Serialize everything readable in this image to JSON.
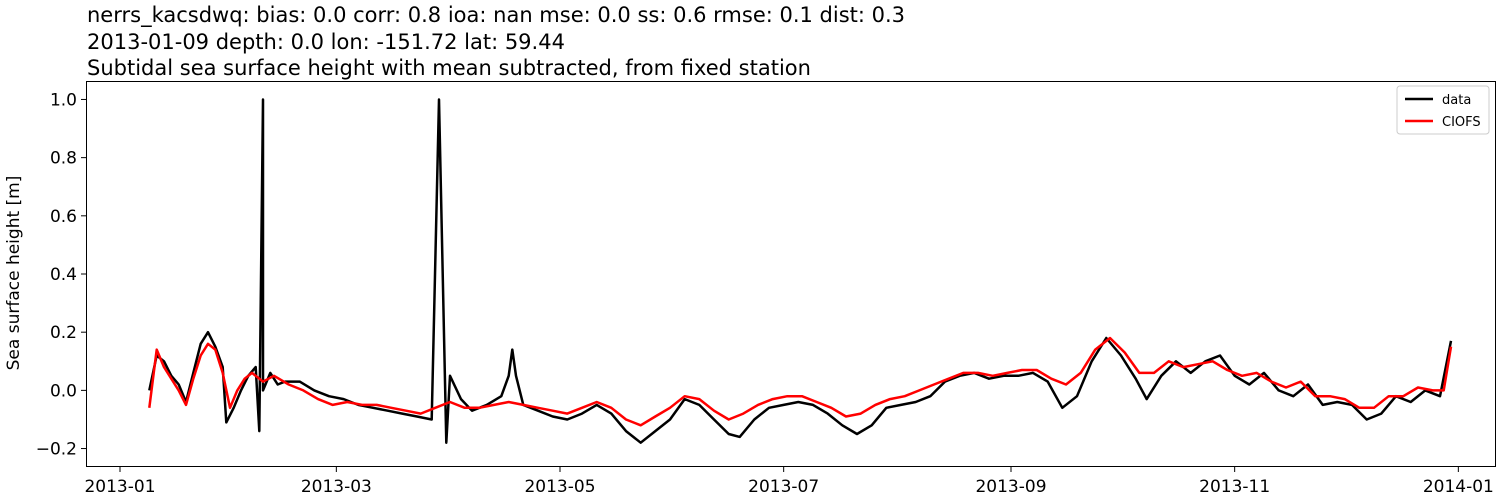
{
  "chart_data": {
    "type": "line",
    "title_lines": [
      "nerrs_kacsdwq: bias: 0.0  corr: 0.8  ioa: nan  mse: 0.0  ss: 0.6  rmse: 0.1  dist: 0.3",
      "2013-01-09 depth: 0.0 lon: -151.72 lat: 59.44",
      "Subtidal sea surface height with mean subtracted, from fixed station"
    ],
    "xlabel": "",
    "ylabel": "Sea surface height [m]",
    "xlim": [
      "2012-12-23",
      "2014-01-11"
    ],
    "ylim": [
      -0.26,
      1.06
    ],
    "x_ticks": [
      "2013-01",
      "2013-03",
      "2013-05",
      "2013-07",
      "2013-09",
      "2013-11",
      "2014-01"
    ],
    "y_ticks": [
      -0.2,
      0.0,
      0.2,
      0.4,
      0.6,
      0.8,
      1.0
    ],
    "y_tick_labels": [
      "−0.2",
      "0.0",
      "0.2",
      "0.4",
      "0.6",
      "0.8",
      "1.0"
    ],
    "grid": false,
    "legend_position": "top-right",
    "colors": {
      "data": "#000000",
      "CIOFS": "#ff0000"
    },
    "series": [
      {
        "name": "data",
        "points": [
          [
            "2013-01-09",
            0.0
          ],
          [
            "2013-01-11",
            0.12
          ],
          [
            "2013-01-13",
            0.1
          ],
          [
            "2013-01-15",
            0.05
          ],
          [
            "2013-01-17",
            0.02
          ],
          [
            "2013-01-19",
            -0.04
          ],
          [
            "2013-01-21",
            0.06
          ],
          [
            "2013-01-23",
            0.16
          ],
          [
            "2013-01-25",
            0.2
          ],
          [
            "2013-01-27",
            0.15
          ],
          [
            "2013-01-29",
            0.08
          ],
          [
            "2013-01-30",
            -0.11
          ],
          [
            "2013-02-01",
            -0.06
          ],
          [
            "2013-02-03",
            0.0
          ],
          [
            "2013-02-05",
            0.05
          ],
          [
            "2013-02-07",
            0.08
          ],
          [
            "2013-02-08",
            -0.14
          ],
          [
            "2013-02-09",
            1.0
          ],
          [
            "2013-02-09",
            0.0
          ],
          [
            "2013-02-11",
            0.06
          ],
          [
            "2013-02-13",
            0.02
          ],
          [
            "2013-02-15",
            0.03
          ],
          [
            "2013-02-19",
            0.03
          ],
          [
            "2013-02-23",
            0.0
          ],
          [
            "2013-02-27",
            -0.02
          ],
          [
            "2013-03-03",
            -0.03
          ],
          [
            "2013-03-07",
            -0.05
          ],
          [
            "2013-03-11",
            -0.06
          ],
          [
            "2013-03-15",
            -0.07
          ],
          [
            "2013-03-19",
            -0.08
          ],
          [
            "2013-03-23",
            -0.09
          ],
          [
            "2013-03-27",
            -0.1
          ],
          [
            "2013-03-29",
            1.0
          ],
          [
            "2013-03-31",
            -0.18
          ],
          [
            "2013-04-01",
            0.05
          ],
          [
            "2013-04-04",
            -0.03
          ],
          [
            "2013-04-07",
            -0.07
          ],
          [
            "2013-04-11",
            -0.05
          ],
          [
            "2013-04-15",
            -0.02
          ],
          [
            "2013-04-17",
            0.05
          ],
          [
            "2013-04-18",
            0.14
          ],
          [
            "2013-04-19",
            0.05
          ],
          [
            "2013-04-21",
            -0.05
          ],
          [
            "2013-04-25",
            -0.07
          ],
          [
            "2013-04-29",
            -0.09
          ],
          [
            "2013-05-03",
            -0.1
          ],
          [
            "2013-05-07",
            -0.08
          ],
          [
            "2013-05-11",
            -0.05
          ],
          [
            "2013-05-15",
            -0.08
          ],
          [
            "2013-05-19",
            -0.14
          ],
          [
            "2013-05-23",
            -0.18
          ],
          [
            "2013-05-27",
            -0.14
          ],
          [
            "2013-05-31",
            -0.1
          ],
          [
            "2013-06-04",
            -0.03
          ],
          [
            "2013-06-08",
            -0.05
          ],
          [
            "2013-06-12",
            -0.1
          ],
          [
            "2013-06-16",
            -0.15
          ],
          [
            "2013-06-19",
            -0.16
          ],
          [
            "2013-06-23",
            -0.1
          ],
          [
            "2013-06-27",
            -0.06
          ],
          [
            "2013-07-01",
            -0.05
          ],
          [
            "2013-07-05",
            -0.04
          ],
          [
            "2013-07-09",
            -0.05
          ],
          [
            "2013-07-13",
            -0.08
          ],
          [
            "2013-07-17",
            -0.12
          ],
          [
            "2013-07-21",
            -0.15
          ],
          [
            "2013-07-25",
            -0.12
          ],
          [
            "2013-07-29",
            -0.06
          ],
          [
            "2013-08-02",
            -0.05
          ],
          [
            "2013-08-06",
            -0.04
          ],
          [
            "2013-08-10",
            -0.02
          ],
          [
            "2013-08-14",
            0.03
          ],
          [
            "2013-08-18",
            0.05
          ],
          [
            "2013-08-22",
            0.06
          ],
          [
            "2013-08-26",
            0.04
          ],
          [
            "2013-08-30",
            0.05
          ],
          [
            "2013-09-03",
            0.05
          ],
          [
            "2013-09-07",
            0.06
          ],
          [
            "2013-09-11",
            0.03
          ],
          [
            "2013-09-15",
            -0.06
          ],
          [
            "2013-09-19",
            -0.02
          ],
          [
            "2013-09-23",
            0.1
          ],
          [
            "2013-09-27",
            0.18
          ],
          [
            "2013-10-01",
            0.12
          ],
          [
            "2013-10-05",
            0.04
          ],
          [
            "2013-10-08",
            -0.03
          ],
          [
            "2013-10-12",
            0.05
          ],
          [
            "2013-10-16",
            0.1
          ],
          [
            "2013-10-20",
            0.06
          ],
          [
            "2013-10-24",
            0.1
          ],
          [
            "2013-10-28",
            0.12
          ],
          [
            "2013-11-01",
            0.05
          ],
          [
            "2013-11-05",
            0.02
          ],
          [
            "2013-11-09",
            0.06
          ],
          [
            "2013-11-13",
            0.0
          ],
          [
            "2013-11-17",
            -0.02
          ],
          [
            "2013-11-21",
            0.02
          ],
          [
            "2013-11-25",
            -0.05
          ],
          [
            "2013-11-29",
            -0.04
          ],
          [
            "2013-12-03",
            -0.05
          ],
          [
            "2013-12-07",
            -0.1
          ],
          [
            "2013-12-11",
            -0.08
          ],
          [
            "2013-12-15",
            -0.02
          ],
          [
            "2013-12-19",
            -0.04
          ],
          [
            "2013-12-23",
            0.0
          ],
          [
            "2013-12-27",
            -0.02
          ],
          [
            "2013-12-30",
            0.17
          ]
        ]
      },
      {
        "name": "CIOFS",
        "points": [
          [
            "2013-01-09",
            -0.06
          ],
          [
            "2013-01-11",
            0.14
          ],
          [
            "2013-01-13",
            0.08
          ],
          [
            "2013-01-15",
            0.04
          ],
          [
            "2013-01-17",
            0.0
          ],
          [
            "2013-01-19",
            -0.05
          ],
          [
            "2013-01-21",
            0.04
          ],
          [
            "2013-01-23",
            0.12
          ],
          [
            "2013-01-25",
            0.16
          ],
          [
            "2013-01-27",
            0.14
          ],
          [
            "2013-01-29",
            0.06
          ],
          [
            "2013-01-31",
            -0.06
          ],
          [
            "2013-02-02",
            0.0
          ],
          [
            "2013-02-04",
            0.04
          ],
          [
            "2013-02-06",
            0.06
          ],
          [
            "2013-02-09",
            0.03
          ],
          [
            "2013-02-12",
            0.05
          ],
          [
            "2013-02-16",
            0.02
          ],
          [
            "2013-02-20",
            0.0
          ],
          [
            "2013-02-24",
            -0.03
          ],
          [
            "2013-02-28",
            -0.05
          ],
          [
            "2013-03-04",
            -0.04
          ],
          [
            "2013-03-08",
            -0.05
          ],
          [
            "2013-03-12",
            -0.05
          ],
          [
            "2013-03-16",
            -0.06
          ],
          [
            "2013-03-20",
            -0.07
          ],
          [
            "2013-03-24",
            -0.08
          ],
          [
            "2013-03-28",
            -0.06
          ],
          [
            "2013-04-01",
            -0.04
          ],
          [
            "2013-04-05",
            -0.06
          ],
          [
            "2013-04-09",
            -0.06
          ],
          [
            "2013-04-13",
            -0.05
          ],
          [
            "2013-04-17",
            -0.04
          ],
          [
            "2013-04-21",
            -0.05
          ],
          [
            "2013-04-25",
            -0.06
          ],
          [
            "2013-04-29",
            -0.07
          ],
          [
            "2013-05-03",
            -0.08
          ],
          [
            "2013-05-07",
            -0.06
          ],
          [
            "2013-05-11",
            -0.04
          ],
          [
            "2013-05-15",
            -0.06
          ],
          [
            "2013-05-19",
            -0.1
          ],
          [
            "2013-05-23",
            -0.12
          ],
          [
            "2013-05-27",
            -0.09
          ],
          [
            "2013-05-31",
            -0.06
          ],
          [
            "2013-06-04",
            -0.02
          ],
          [
            "2013-06-08",
            -0.03
          ],
          [
            "2013-06-12",
            -0.07
          ],
          [
            "2013-06-16",
            -0.1
          ],
          [
            "2013-06-20",
            -0.08
          ],
          [
            "2013-06-24",
            -0.05
          ],
          [
            "2013-06-28",
            -0.03
          ],
          [
            "2013-07-02",
            -0.02
          ],
          [
            "2013-07-06",
            -0.02
          ],
          [
            "2013-07-10",
            -0.04
          ],
          [
            "2013-07-14",
            -0.06
          ],
          [
            "2013-07-18",
            -0.09
          ],
          [
            "2013-07-22",
            -0.08
          ],
          [
            "2013-07-26",
            -0.05
          ],
          [
            "2013-07-30",
            -0.03
          ],
          [
            "2013-08-03",
            -0.02
          ],
          [
            "2013-08-07",
            0.0
          ],
          [
            "2013-08-11",
            0.02
          ],
          [
            "2013-08-15",
            0.04
          ],
          [
            "2013-08-19",
            0.06
          ],
          [
            "2013-08-23",
            0.06
          ],
          [
            "2013-08-27",
            0.05
          ],
          [
            "2013-08-31",
            0.06
          ],
          [
            "2013-09-04",
            0.07
          ],
          [
            "2013-09-08",
            0.07
          ],
          [
            "2013-09-12",
            0.04
          ],
          [
            "2013-09-16",
            0.02
          ],
          [
            "2013-09-20",
            0.06
          ],
          [
            "2013-09-24",
            0.14
          ],
          [
            "2013-09-28",
            0.18
          ],
          [
            "2013-10-02",
            0.13
          ],
          [
            "2013-10-06",
            0.06
          ],
          [
            "2013-10-10",
            0.06
          ],
          [
            "2013-10-14",
            0.1
          ],
          [
            "2013-10-18",
            0.08
          ],
          [
            "2013-10-22",
            0.09
          ],
          [
            "2013-10-26",
            0.1
          ],
          [
            "2013-10-30",
            0.07
          ],
          [
            "2013-11-03",
            0.05
          ],
          [
            "2013-11-07",
            0.06
          ],
          [
            "2013-11-11",
            0.03
          ],
          [
            "2013-11-15",
            0.01
          ],
          [
            "2013-11-19",
            0.03
          ],
          [
            "2013-11-23",
            -0.02
          ],
          [
            "2013-11-27",
            -0.02
          ],
          [
            "2013-12-01",
            -0.03
          ],
          [
            "2013-12-05",
            -0.06
          ],
          [
            "2013-12-09",
            -0.06
          ],
          [
            "2013-12-13",
            -0.02
          ],
          [
            "2013-12-17",
            -0.02
          ],
          [
            "2013-12-21",
            0.01
          ],
          [
            "2013-12-25",
            0.0
          ],
          [
            "2013-12-28",
            0.0
          ],
          [
            "2013-12-30",
            0.15
          ]
        ]
      }
    ]
  }
}
